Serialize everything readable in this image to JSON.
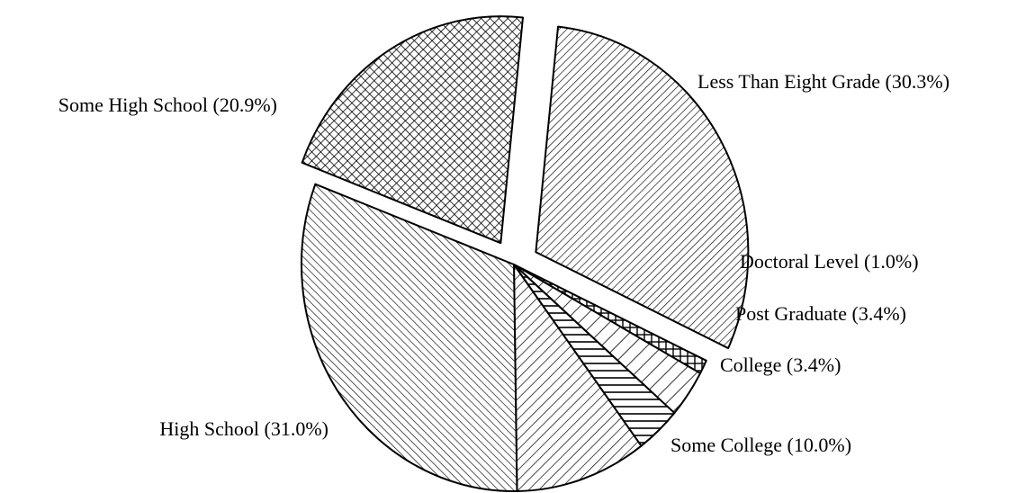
{
  "chart_data": {
    "type": "pie",
    "title": "",
    "slices": [
      {
        "label": "Less Than Eight Grade (30.3%)",
        "category": "Less Than Eight Grade",
        "value": 30.3,
        "exploded": true,
        "pattern": "diagonal-dense-backslash"
      },
      {
        "label": "Doctoral Level (1.0%)",
        "category": "Doctoral Level",
        "value": 1.0,
        "exploded": false,
        "pattern": "grid"
      },
      {
        "label": "Post Graduate (3.4%)",
        "category": "Post Graduate",
        "value": 3.4,
        "exploded": false,
        "pattern": "diagonal-sparse-backslash"
      },
      {
        "label": "College (3.4%)",
        "category": "College",
        "value": 3.4,
        "exploded": false,
        "pattern": "horizontal"
      },
      {
        "label": "Some College (10.0%)",
        "category": "Some College",
        "value": 10.0,
        "exploded": false,
        "pattern": "diagonal-backslash"
      },
      {
        "label": "High School (31.0%)",
        "category": "High School",
        "value": 31.0,
        "exploded": false,
        "pattern": "diagonal-slash"
      },
      {
        "label": "Some High School (20.9%)",
        "category": "Some High School",
        "value": 20.9,
        "exploded": true,
        "pattern": "crosshatch-diagonal"
      }
    ]
  }
}
